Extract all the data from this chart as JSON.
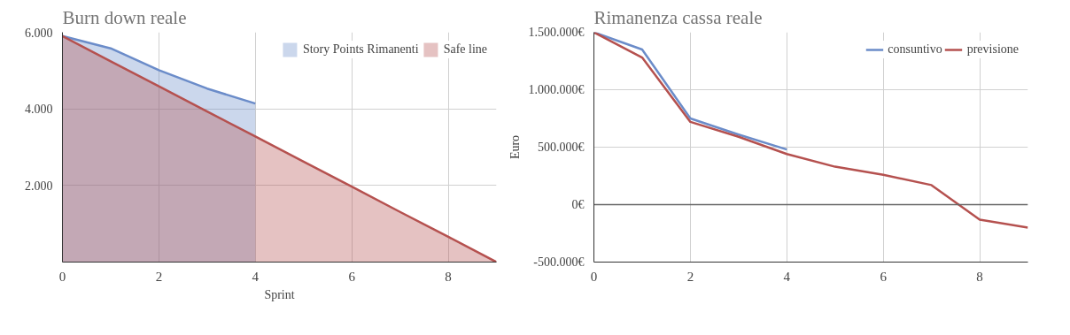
{
  "chart_data": [
    {
      "type": "area",
      "title": "Burn down reale",
      "xlabel": "Sprint",
      "xlim": [
        0,
        9
      ],
      "ylim": [
        0,
        6000
      ],
      "xticks": [
        0,
        2,
        4,
        6,
        8
      ],
      "yticks": [
        {
          "value": 2000,
          "label": "2.000"
        },
        {
          "value": 4000,
          "label": "4.000"
        },
        {
          "value": 6000,
          "label": "6.000"
        }
      ],
      "grid": true,
      "legend": "top right",
      "series": [
        {
          "name": "Story Points Rimanenti",
          "color": "#6b8cc9",
          "x": [
            0,
            1,
            2,
            3,
            4
          ],
          "values": [
            5900,
            5580,
            5010,
            4530,
            4140
          ]
        },
        {
          "name": "Safe line",
          "color": "#b5514f",
          "x": [
            0,
            1,
            2,
            3,
            4,
            5,
            6,
            7,
            8,
            9
          ],
          "values": [
            5900,
            5240,
            4590,
            3930,
            3280,
            2620,
            1970,
            1310,
            660,
            0
          ]
        }
      ]
    },
    {
      "type": "line",
      "title": "Rimanenza cassa reale",
      "ylabel": "Euro",
      "xlim": [
        0,
        9
      ],
      "ylim": [
        -500000,
        1500000
      ],
      "xticks": [
        0,
        2,
        4,
        6,
        8
      ],
      "yticks": [
        {
          "value": -500000,
          "label": "-500.000€"
        },
        {
          "value": 0,
          "label": "0€"
        },
        {
          "value": 500000,
          "label": "500.000€"
        },
        {
          "value": 1000000,
          "label": "1.000.000€"
        },
        {
          "value": 1500000,
          "label": "1.500.000€"
        }
      ],
      "grid": true,
      "legend": "top right",
      "ref_lines": [
        {
          "axis": "y",
          "value": 0,
          "color": "#666666"
        }
      ],
      "series": [
        {
          "name": "consuntivo",
          "color": "#6b8cc9",
          "x": [
            0,
            1,
            2,
            3,
            4
          ],
          "values": [
            1500000,
            1350000,
            750000,
            610000,
            480000
          ]
        },
        {
          "name": "previsione",
          "color": "#b5514f",
          "x": [
            0,
            1,
            2,
            3,
            4,
            5,
            6,
            7,
            8,
            9
          ],
          "values": [
            1500000,
            1280000,
            720000,
            590000,
            440000,
            330000,
            260000,
            170000,
            -130000,
            -200000
          ]
        }
      ]
    }
  ]
}
